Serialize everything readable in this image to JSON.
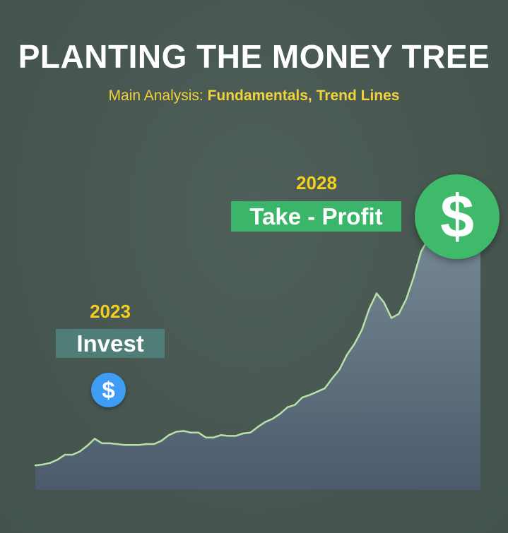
{
  "header": {
    "title": "PLANTING THE MONEY TREE",
    "subtitle_prefix": "Main Analysis: ",
    "subtitle_highlight": "Fundamentals, Trend Lines"
  },
  "markers": {
    "invest": {
      "year": "2023",
      "label": "Invest",
      "icon": "dollar-icon",
      "symbol": "$",
      "color": "#3e9cf4"
    },
    "profit": {
      "year": "2028",
      "label": "Take - Profit",
      "icon": "dollar-icon",
      "symbol": "$",
      "color": "#3fba6a"
    }
  },
  "colors": {
    "background": "#4a5a56",
    "title": "#ffffff",
    "accent_yellow": "#f4cf1e",
    "line": "#b6e2a8",
    "area_top": "#7c8e9a",
    "area_bottom": "#4b5b6b",
    "invest_tag": "#4f7d77",
    "profit_tag": "#3bb56a"
  },
  "chart_data": {
    "type": "area",
    "x": [
      0,
      1,
      2,
      3,
      4,
      5,
      6,
      7,
      8,
      9,
      10,
      11,
      12,
      13,
      14,
      15,
      16,
      17,
      18,
      19,
      20,
      21,
      22,
      23,
      24,
      25,
      26,
      27,
      28,
      29,
      30,
      31,
      32,
      33,
      34,
      35,
      36,
      37,
      38,
      39,
      40,
      41,
      42,
      43,
      44,
      45,
      46,
      47,
      48,
      49,
      50,
      51,
      52,
      53,
      54,
      55,
      56,
      57,
      58,
      59,
      60
    ],
    "values": [
      6,
      6.2,
      6.6,
      7.4,
      8.6,
      8.6,
      9.4,
      10.8,
      12.5,
      11.4,
      11.4,
      11.2,
      11,
      11,
      11,
      11.2,
      11.2,
      12,
      13.4,
      14.2,
      14.4,
      14,
      14,
      12.8,
      12.8,
      13.4,
      13.2,
      13.2,
      13.8,
      14,
      15.4,
      16.6,
      17.4,
      18.6,
      20.2,
      20.8,
      22.6,
      23.2,
      24,
      24.8,
      27.2,
      29.4,
      33,
      35.6,
      39,
      44.2,
      48,
      45.8,
      42,
      43,
      46.6,
      52,
      58.2,
      61.4,
      63,
      65.4,
      67.4,
      69.2,
      70.4,
      71.4,
      72
    ],
    "ylim": [
      0,
      80
    ],
    "grid": false,
    "legend": "none"
  }
}
